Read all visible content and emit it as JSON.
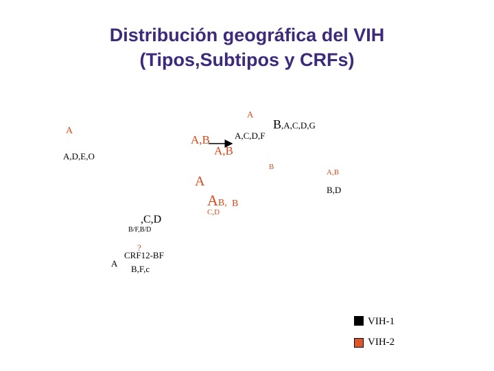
{
  "title": {
    "line1": "Distribución geográfica del VIH",
    "line2": "(Tipos,Subtipos y CRFs)"
  },
  "labels": {
    "north_america": "A",
    "north_africa": "A,B",
    "north_africa_types": "A,C,D,F",
    "europe_red": "A",
    "east_europe": "B,A,C,D,G",
    "east_europe_subtypes": ",A,C,D,G",
    "east_europe_lead": "B",
    "mid_africa_red": "A,B",
    "west_africa_red": "A",
    "central_america": "A,D,E,O",
    "middle_east_red": "B",
    "asia_red": "A,B",
    "asia_black": "B,D",
    "central_africa_a": "A",
    "central_africa_b": "B",
    "central_africa_sep": ",",
    "central_africa_b2": "B",
    "central_africa_cd": "C,D",
    "south_america_cd": ",C,D",
    "brazil_crf": "B/F,B/D",
    "south_question": "?",
    "crf": "CRF12-BF",
    "south_a": "A",
    "south_bfc": "B,F,c"
  },
  "legend": [
    {
      "label": "VIH-1",
      "color": "#000000"
    },
    {
      "label": "VIH-2",
      "color": "#e0542a"
    }
  ],
  "colors": {
    "title": "#3d2a7a",
    "red_labels": "#d84a1b",
    "black_labels": "#000000"
  }
}
